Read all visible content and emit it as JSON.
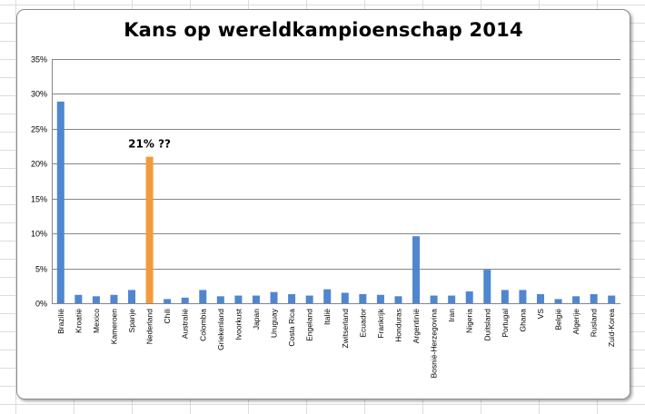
{
  "chart_data": {
    "type": "bar",
    "title": "Kans op wereldkampioenschap 2014",
    "xlabel": "",
    "ylabel": "",
    "ylim": [
      0,
      0.35
    ],
    "yticks": [
      0,
      0.05,
      0.1,
      0.15,
      0.2,
      0.25,
      0.3,
      0.35
    ],
    "ytick_labels": [
      "0%",
      "5%",
      "10%",
      "15%",
      "20%",
      "25%",
      "30%",
      "35%"
    ],
    "grid": true,
    "categories": [
      "Brazilië",
      "Kroatië",
      "Mexico",
      "Kameroen",
      "Spanje",
      "Nederland",
      "Chili",
      "Australië",
      "Colombia",
      "Griekenland",
      "Ivoorkust",
      "Japan",
      "Uruguay",
      "Costa Rica",
      "Engeland",
      "Italië",
      "Zwitserland",
      "Ecuador",
      "Frankrijk",
      "Honduras",
      "Argentinië",
      "Bosnië-Herzegovina",
      "Iran",
      "Nigeria",
      "Duitsland",
      "Portugal",
      "Ghana",
      "VS",
      "België",
      "Algerije",
      "Rusland",
      "Zuid-Korea"
    ],
    "values": [
      0.289,
      0.012,
      0.01,
      0.012,
      0.019,
      0.21,
      0.006,
      0.008,
      0.019,
      0.01,
      0.011,
      0.011,
      0.016,
      0.013,
      0.011,
      0.02,
      0.015,
      0.013,
      0.012,
      0.01,
      0.096,
      0.011,
      0.011,
      0.017,
      0.048,
      0.019,
      0.019,
      0.013,
      0.006,
      0.01,
      0.013,
      0.011
    ],
    "colors": {
      "default": "#4f86d0",
      "highlight": "#f39a3a",
      "grid": "#868686"
    },
    "highlight_index": 5,
    "annotations": [
      {
        "text": "21% ??",
        "category": "Nederland"
      }
    ]
  }
}
